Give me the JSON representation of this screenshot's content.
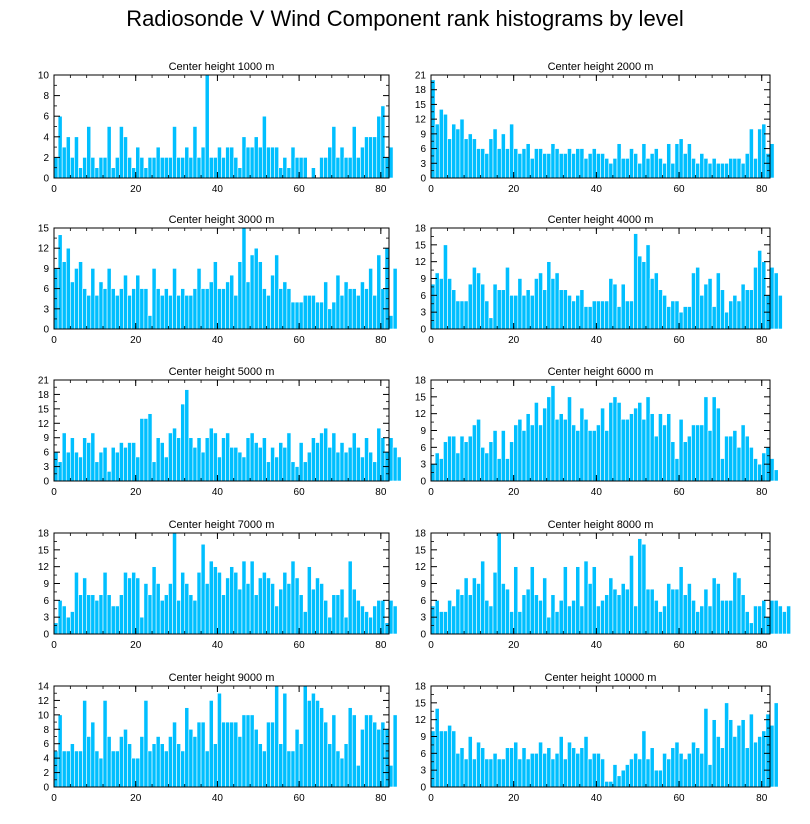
{
  "page_title": "Radiosonde V Wind Component rank histograms by level",
  "bar_color": "#00bfff",
  "bar_edge_color": "#ffffff",
  "chart_data": [
    {
      "type": "bar",
      "title": "Center height 1000 m",
      "xlim": [
        0,
        82
      ],
      "ylim": [
        0,
        10
      ],
      "xticks": [
        0,
        20,
        40,
        60,
        80
      ],
      "yticks": [
        0,
        2,
        4,
        6,
        8,
        10
      ],
      "values": [
        2,
        6,
        3,
        4,
        2,
        4,
        1,
        2,
        5,
        2,
        1,
        2,
        2,
        5,
        1,
        2,
        5,
        4,
        2,
        1,
        3,
        2,
        1,
        2,
        2,
        3,
        2,
        2,
        2,
        5,
        2,
        2,
        3,
        2,
        5,
        2,
        3,
        10,
        2,
        2,
        3,
        2,
        3,
        3,
        2,
        1,
        4,
        3,
        3,
        4,
        3,
        6,
        3,
        3,
        3,
        1,
        2,
        1,
        3,
        2,
        2,
        2,
        0,
        1,
        0,
        2,
        2,
        3,
        5,
        2,
        3,
        2,
        2,
        5,
        2,
        3,
        4,
        4,
        4,
        6,
        7,
        2,
        3
      ]
    },
    {
      "type": "bar",
      "title": "Center height 2000 m",
      "xlim": [
        0,
        82
      ],
      "ylim": [
        0,
        21
      ],
      "xticks": [
        0,
        20,
        40,
        60,
        80
      ],
      "yticks": [
        0,
        3,
        6,
        9,
        12,
        15,
        18,
        21
      ],
      "values": [
        20,
        11,
        14,
        13,
        8,
        11,
        10,
        12,
        8,
        9,
        8,
        6,
        6,
        5,
        8,
        10,
        6,
        9,
        6,
        11,
        6,
        5,
        6,
        7,
        4,
        6,
        6,
        5,
        5,
        7,
        6,
        5,
        5,
        6,
        5,
        6,
        6,
        4,
        5,
        6,
        5,
        5,
        4,
        3,
        4,
        7,
        4,
        4,
        6,
        5,
        3,
        7,
        4,
        5,
        6,
        4,
        3,
        7,
        3,
        7,
        8,
        5,
        7,
        4,
        3,
        5,
        4,
        3,
        4,
        3,
        3,
        3,
        4,
        4,
        4,
        3,
        5,
        10,
        4,
        10,
        11,
        5,
        7
      ]
    },
    {
      "type": "bar",
      "title": "Center height 3000 m",
      "xlim": [
        0,
        82
      ],
      "ylim": [
        0,
        15
      ],
      "xticks": [
        0,
        20,
        40,
        60,
        80
      ],
      "yticks": [
        0,
        3,
        6,
        9,
        12,
        15
      ],
      "values": [
        9,
        14,
        10,
        12,
        7,
        9,
        10,
        6,
        5,
        9,
        5,
        7,
        6,
        9,
        6,
        5,
        6,
        8,
        5,
        6,
        8,
        6,
        6,
        2,
        9,
        6,
        5,
        6,
        5,
        9,
        5,
        6,
        5,
        5,
        6,
        9,
        6,
        6,
        7,
        10,
        6,
        6,
        7,
        8,
        5,
        10,
        15,
        7,
        11,
        12,
        10,
        6,
        5,
        8,
        11,
        6,
        7,
        6,
        4,
        4,
        4,
        5,
        5,
        5,
        4,
        4,
        7,
        3,
        4,
        8,
        5,
        7,
        6,
        6,
        5,
        7,
        6,
        9,
        5,
        11,
        6,
        12,
        2,
        9
      ]
    },
    {
      "type": "bar",
      "title": "Center height 4000 m",
      "xlim": [
        0,
        82
      ],
      "ylim": [
        0,
        18
      ],
      "xticks": [
        0,
        20,
        40,
        60,
        80
      ],
      "yticks": [
        0,
        3,
        6,
        9,
        12,
        15,
        18
      ],
      "values": [
        8,
        10,
        9,
        15,
        9,
        7,
        5,
        5,
        5,
        8,
        11,
        10,
        8,
        5,
        2,
        8,
        7,
        7,
        11,
        6,
        6,
        9,
        6,
        7,
        6,
        9,
        10,
        7,
        12,
        9,
        10,
        7,
        7,
        6,
        5,
        6,
        7,
        4,
        4,
        5,
        5,
        5,
        5,
        9,
        8,
        4,
        8,
        5,
        5,
        17,
        13,
        12,
        15,
        9,
        10,
        7,
        6,
        4,
        5,
        5,
        3,
        4,
        4,
        10,
        11,
        6,
        8,
        9,
        4,
        10,
        7,
        3,
        5,
        6,
        5,
        8,
        7,
        7,
        11,
        14,
        12,
        6,
        11,
        10,
        6
      ]
    },
    {
      "type": "bar",
      "title": "Center height 5000 m",
      "xlim": [
        0,
        82
      ],
      "ylim": [
        0,
        21
      ],
      "xticks": [
        0,
        20,
        40,
        60,
        80
      ],
      "yticks": [
        0,
        3,
        6,
        9,
        12,
        15,
        18,
        21
      ],
      "values": [
        6,
        4,
        10,
        6,
        9,
        6,
        5,
        9,
        8,
        10,
        4,
        6,
        7,
        2,
        7,
        6,
        8,
        7,
        8,
        8,
        5,
        13,
        13,
        14,
        4,
        9,
        8,
        5,
        10,
        11,
        9,
        16,
        19,
        9,
        7,
        9,
        6,
        9,
        11,
        10,
        5,
        9,
        10,
        7,
        7,
        6,
        5,
        9,
        10,
        8,
        7,
        9,
        4,
        7,
        5,
        8,
        7,
        10,
        4,
        3,
        8,
        4,
        6,
        9,
        8,
        10,
        11,
        7,
        10,
        6,
        8,
        6,
        7,
        10,
        7,
        5,
        9,
        6,
        4,
        11,
        9,
        6,
        9,
        7,
        5
      ]
    },
    {
      "type": "bar",
      "title": "Center height 6000 m",
      "xlim": [
        0,
        82
      ],
      "ylim": [
        0,
        18
      ],
      "xticks": [
        0,
        20,
        40,
        60,
        80
      ],
      "yticks": [
        0,
        3,
        6,
        9,
        12,
        15,
        18
      ],
      "values": [
        3,
        5,
        4,
        7,
        8,
        8,
        5,
        8,
        7,
        8,
        10,
        11,
        6,
        5,
        7,
        9,
        4,
        9,
        4,
        7,
        10,
        11,
        9,
        12,
        10,
        14,
        10,
        13,
        15,
        17,
        11,
        12,
        11,
        15,
        10,
        9,
        13,
        11,
        9,
        9,
        10,
        13,
        9,
        14,
        15,
        14,
        11,
        11,
        12,
        13,
        14,
        11,
        15,
        12,
        8,
        12,
        10,
        12,
        7,
        4,
        11,
        7,
        8,
        10,
        10,
        10,
        15,
        9,
        15,
        13,
        4,
        8,
        8,
        9,
        6,
        10,
        8,
        6,
        4,
        3,
        5,
        6,
        4,
        2
      ]
    },
    {
      "type": "bar",
      "title": "Center height 7000 m",
      "xlim": [
        0,
        82
      ],
      "ylim": [
        0,
        18
      ],
      "xticks": [
        0,
        20,
        40,
        60,
        80
      ],
      "yticks": [
        0,
        3,
        6,
        9,
        12,
        15,
        18
      ],
      "values": [
        2,
        6,
        5,
        3,
        4,
        11,
        7,
        10,
        7,
        7,
        6,
        7,
        11,
        7,
        5,
        5,
        7,
        11,
        10,
        11,
        10,
        3,
        9,
        7,
        12,
        9,
        6,
        7,
        9,
        18,
        6,
        11,
        9,
        7,
        6,
        11,
        16,
        9,
        13,
        12,
        11,
        7,
        10,
        12,
        11,
        8,
        13,
        9,
        13,
        7,
        10,
        11,
        10,
        9,
        5,
        8,
        11,
        9,
        13,
        10,
        7,
        4,
        12,
        8,
        10,
        9,
        6,
        3,
        7,
        7,
        8,
        3,
        13,
        8,
        6,
        5,
        4,
        3,
        5,
        6,
        6,
        2,
        6,
        5
      ]
    },
    {
      "type": "bar",
      "title": "Center height 8000 m",
      "xlim": [
        0,
        82
      ],
      "ylim": [
        0,
        18
      ],
      "xticks": [
        0,
        20,
        40,
        60,
        80
      ],
      "yticks": [
        0,
        3,
        6,
        9,
        12,
        15,
        18
      ],
      "values": [
        5,
        6,
        4,
        4,
        6,
        5,
        8,
        7,
        10,
        7,
        10,
        9,
        13,
        6,
        5,
        11,
        18,
        9,
        8,
        4,
        12,
        4,
        7,
        8,
        12,
        7,
        6,
        10,
        3,
        7,
        4,
        6,
        12,
        5,
        6,
        12,
        5,
        13,
        9,
        12,
        5,
        6,
        7,
        10,
        8,
        7,
        9,
        8,
        14,
        5,
        17,
        16,
        8,
        8,
        6,
        4,
        5,
        9,
        8,
        8,
        12,
        7,
        9,
        6,
        4,
        5,
        8,
        5,
        10,
        9,
        6,
        6,
        6,
        11,
        10,
        7,
        4,
        2,
        5,
        5,
        6,
        3,
        6,
        6,
        5,
        4,
        5
      ]
    },
    {
      "type": "bar",
      "title": "Center height 9000 m",
      "xlim": [
        0,
        82
      ],
      "ylim": [
        0,
        14
      ],
      "xticks": [
        0,
        20,
        40,
        60,
        80
      ],
      "yticks": [
        0,
        2,
        4,
        6,
        8,
        10,
        12,
        14
      ],
      "values": [
        5,
        10,
        5,
        5,
        6,
        5,
        5,
        12,
        7,
        9,
        5,
        4,
        12,
        7,
        5,
        5,
        7,
        8,
        6,
        4,
        4,
        7,
        12,
        5,
        6,
        7,
        6,
        5,
        7,
        9,
        6,
        5,
        11,
        8,
        7,
        9,
        9,
        5,
        12,
        6,
        13,
        9,
        9,
        9,
        9,
        7,
        10,
        10,
        10,
        8,
        6,
        5,
        9,
        9,
        14,
        6,
        13,
        5,
        5,
        8,
        6,
        14,
        12,
        13,
        12,
        11,
        9,
        6,
        10,
        5,
        4,
        6,
        11,
        10,
        3,
        8,
        10,
        10,
        9,
        8,
        9,
        8,
        3,
        10
      ]
    },
    {
      "type": "bar",
      "title": "Center height 10000 m",
      "xlim": [
        0,
        82
      ],
      "ylim": [
        0,
        18
      ],
      "xticks": [
        0,
        20,
        40,
        60,
        80
      ],
      "yticks": [
        0,
        3,
        6,
        9,
        12,
        15,
        18
      ],
      "values": [
        10,
        14,
        10,
        10,
        11,
        10,
        6,
        7,
        5,
        9,
        5,
        8,
        7,
        5,
        5,
        6,
        5,
        5,
        7,
        7,
        8,
        5,
        7,
        5,
        6,
        6,
        8,
        6,
        7,
        5,
        6,
        9,
        5,
        8,
        7,
        6,
        7,
        9,
        5,
        6,
        6,
        5,
        1,
        1,
        4,
        2,
        3,
        4,
        5,
        6,
        5,
        10,
        5,
        7,
        3,
        3,
        6,
        5,
        7,
        8,
        6,
        5,
        6,
        8,
        7,
        6,
        14,
        4,
        12,
        9,
        7,
        15,
        12,
        9,
        11,
        12,
        7,
        13,
        8,
        9,
        10,
        13,
        11,
        15
      ]
    }
  ]
}
